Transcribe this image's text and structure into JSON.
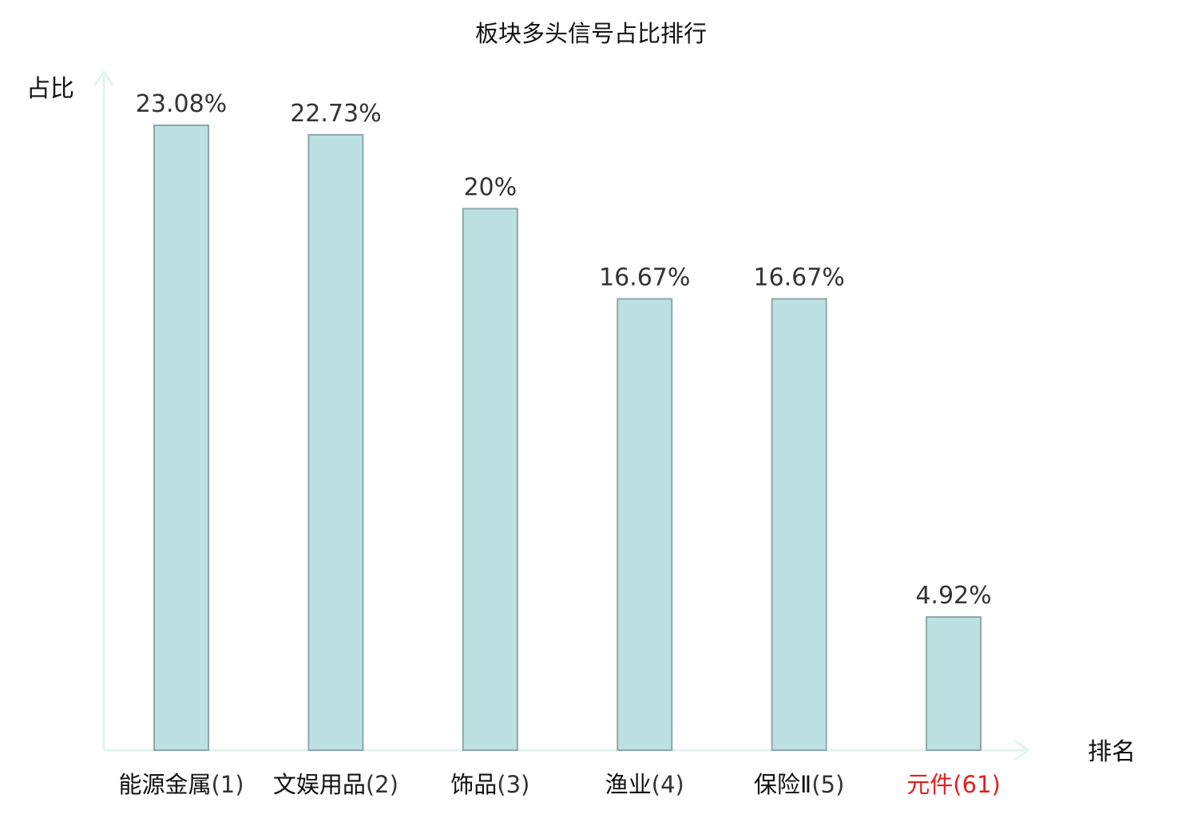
{
  "chart_data": {
    "type": "bar",
    "title": "板块多头信号占比排行",
    "xlabel": "排名",
    "ylabel": "占比",
    "categories": [
      {
        "name": "能源金属",
        "rank": "(1)"
      },
      {
        "name": "文娱用品",
        "rank": "(2)"
      },
      {
        "name": "饰品",
        "rank": "(3)"
      },
      {
        "name": "渔业",
        "rank": "(4)"
      },
      {
        "name": "保险Ⅱ",
        "rank": "(5)"
      },
      {
        "name": "元件",
        "rank": "(61)",
        "highlight": true
      }
    ],
    "values": [
      23.08,
      22.73,
      20,
      16.67,
      16.67,
      4.92
    ],
    "value_labels": [
      "23.08%",
      "22.73%",
      "20%",
      "16.67%",
      "16.67%",
      "4.92%"
    ],
    "ylim": [
      0,
      25
    ],
    "grid": false,
    "legend": "none"
  },
  "colors": {
    "bar_fill": "#bde0e2",
    "bar_stroke": "#8fa8aa",
    "axis": "#e0f3f1",
    "label_text": "#111111",
    "rank_text": "#333333",
    "value_text": "#333333",
    "highlight_text": "#e02020"
  }
}
